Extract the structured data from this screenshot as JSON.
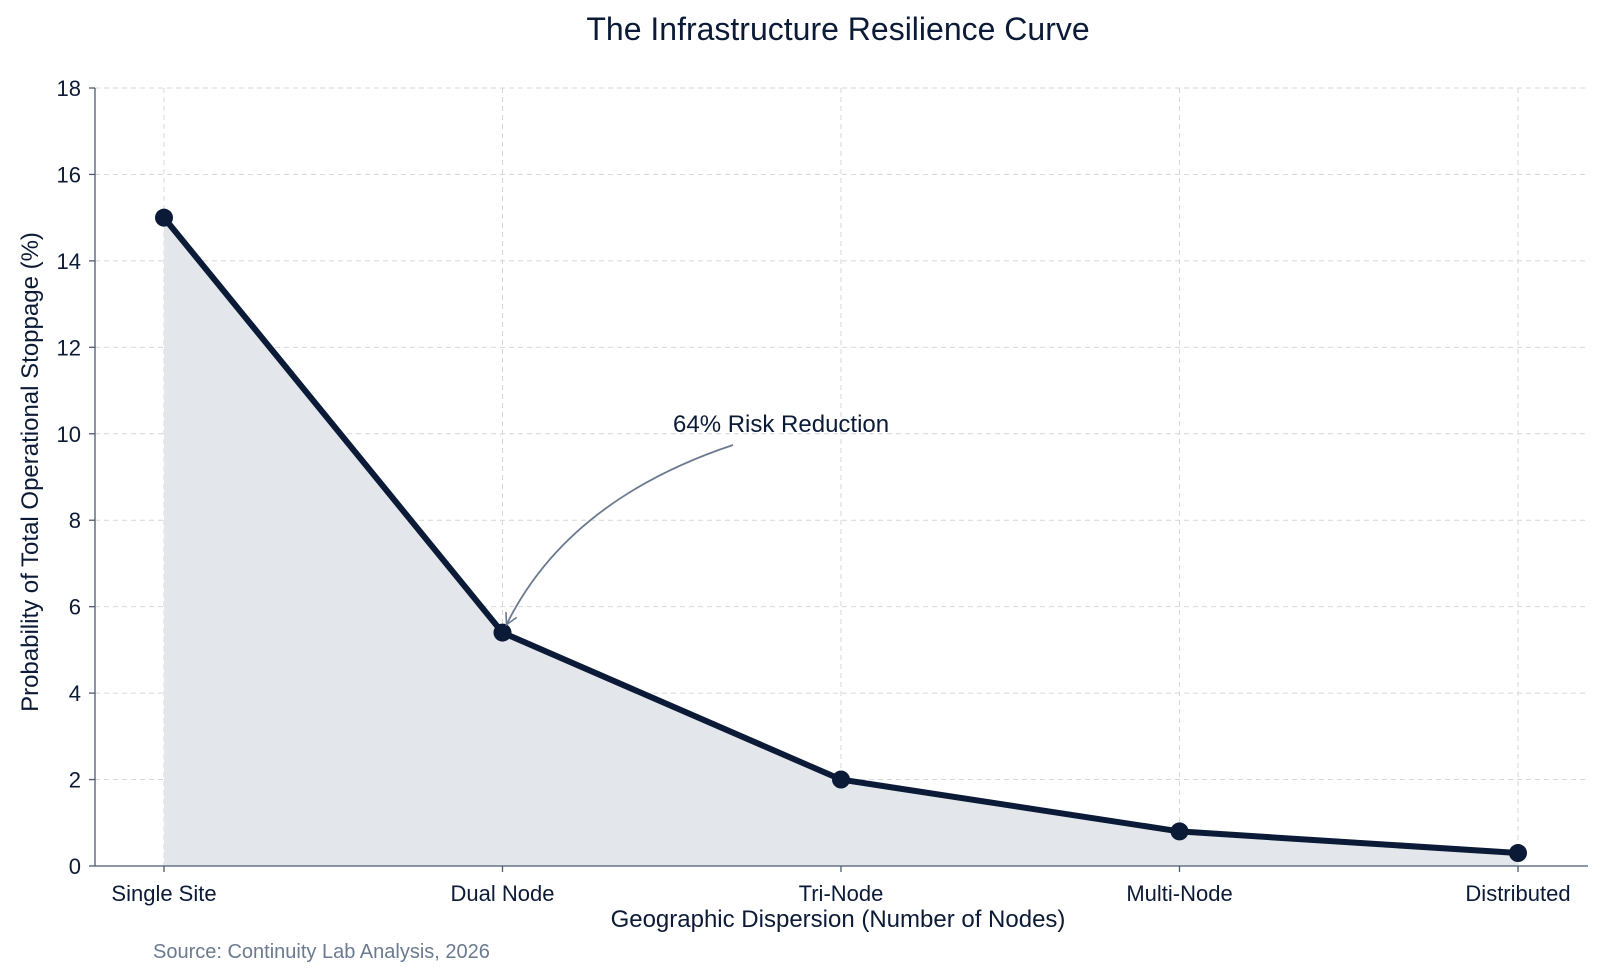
{
  "chart_data": {
    "type": "area",
    "title": "The Infrastructure Resilience Curve",
    "xlabel": "Geographic Dispersion (Number of Nodes)",
    "ylabel": "Probability of Total Operational Stoppage (%)",
    "categories": [
      "Single Site",
      "Dual Node",
      "Tri-Node",
      "Multi-Node",
      "Distributed"
    ],
    "values": [
      15,
      5.4,
      2,
      0.8,
      0.3
    ],
    "ylim": [
      0,
      18
    ],
    "yticks": [
      0,
      2,
      4,
      6,
      8,
      10,
      12,
      14,
      16,
      18
    ],
    "grid": true,
    "annotation": {
      "text": "64% Risk Reduction",
      "target_category": "Dual Node",
      "target_value": 5.4
    },
    "source": "Source: Continuity Lab Analysis, 2026"
  },
  "colors": {
    "line": "#0b1a36",
    "fill": "#e3e6ea",
    "arrow": "#6b7a90"
  }
}
